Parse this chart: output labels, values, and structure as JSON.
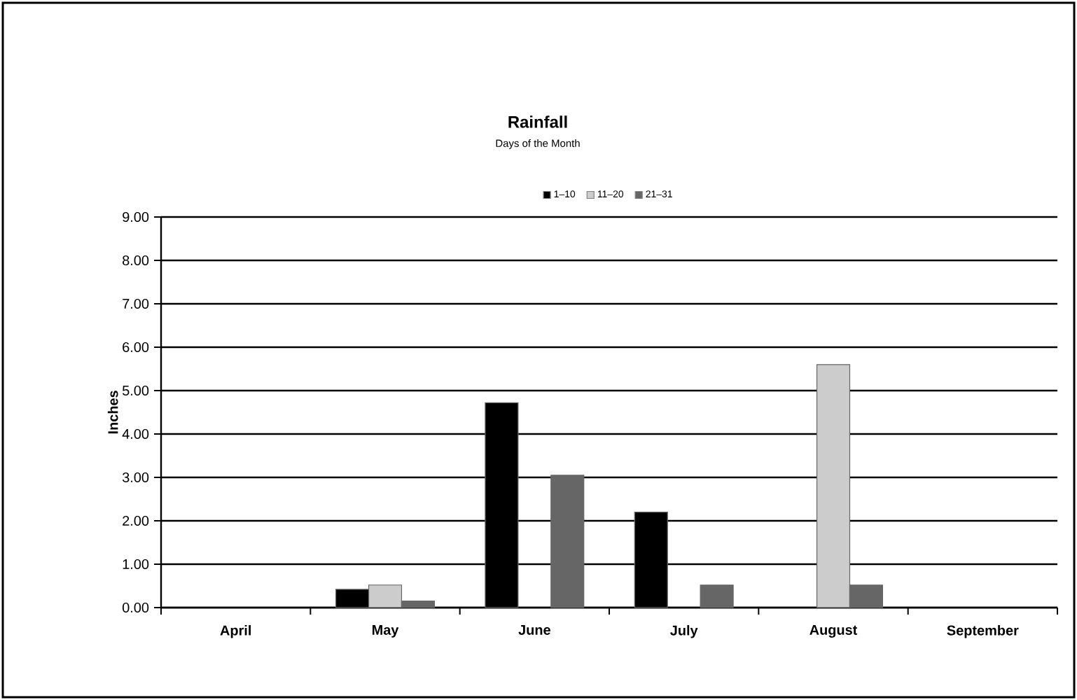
{
  "chart_data": {
    "type": "bar",
    "title": "Rainfall",
    "subtitle": "Days of the Month",
    "ylabel": "Inches",
    "categories": [
      "April",
      "May",
      "June",
      "July",
      "August",
      "September"
    ],
    "series": [
      {
        "name": "1–10",
        "color": "#000000",
        "values": [
          null,
          0.42,
          4.72,
          2.2,
          null,
          null
        ]
      },
      {
        "name": "11–20",
        "color": "#cccccc",
        "values": [
          null,
          0.52,
          null,
          null,
          5.6,
          null
        ]
      },
      {
        "name": "21–31",
        "color": "#666666",
        "values": [
          null,
          0.15,
          3.05,
          0.52,
          0.52,
          null
        ]
      }
    ],
    "ylim": [
      0,
      9
    ],
    "yticks": [
      {
        "value": 0,
        "label": "0.00"
      },
      {
        "value": 1,
        "label": "1.00"
      },
      {
        "value": 2,
        "label": "2.00"
      },
      {
        "value": 3,
        "label": "3.00"
      },
      {
        "value": 4,
        "label": "4.00"
      },
      {
        "value": 5,
        "label": "5.00"
      },
      {
        "value": 6,
        "label": "6.00"
      },
      {
        "value": 7,
        "label": "7.00"
      },
      {
        "value": 8,
        "label": "8.00"
      },
      {
        "value": 9,
        "label": "9.00"
      }
    ],
    "grid": "y",
    "legend": "top"
  }
}
